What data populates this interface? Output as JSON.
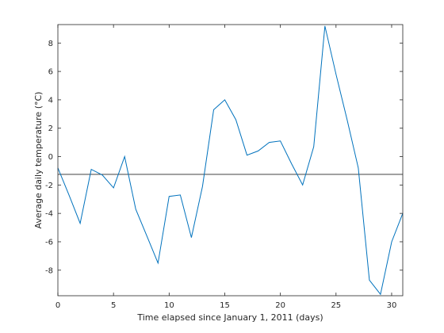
{
  "chart_data": {
    "type": "line",
    "title": "",
    "xlabel": "Time elapsed since January 1, 2011 (days)",
    "ylabel": "Average daily temperature (°C)",
    "xlim": [
      0,
      31
    ],
    "ylim": [
      -9.8,
      9.3
    ],
    "xticks": [
      0,
      5,
      10,
      15,
      20,
      25,
      30
    ],
    "yticks": [
      -8,
      -6,
      -4,
      -2,
      0,
      2,
      4,
      6,
      8
    ],
    "grid": false,
    "legend": "none",
    "series": [
      {
        "color": "#0072bd",
        "x": [
          0,
          1,
          2,
          3,
          4,
          5,
          6,
          7,
          8,
          9,
          10,
          11,
          12,
          13,
          14,
          15,
          16,
          17,
          18,
          19,
          20,
          21,
          22,
          23,
          24,
          25,
          26,
          27,
          28,
          29,
          30,
          31
        ],
        "y": [
          -0.8,
          -2.7,
          -4.7,
          -0.9,
          -1.3,
          -2.2,
          0.0,
          -3.7,
          -5.6,
          -7.5,
          -2.8,
          -2.7,
          -5.7,
          -2.1,
          3.3,
          4.0,
          2.6,
          0.1,
          0.4,
          1.0,
          1.1,
          -0.5,
          -2.0,
          0.7,
          9.2,
          5.8,
          2.6,
          -0.8,
          -8.7,
          -9.7,
          -6.0,
          -4.0
        ]
      }
    ],
    "reference_line": {
      "y": -1.25,
      "color": "#262626"
    }
  }
}
